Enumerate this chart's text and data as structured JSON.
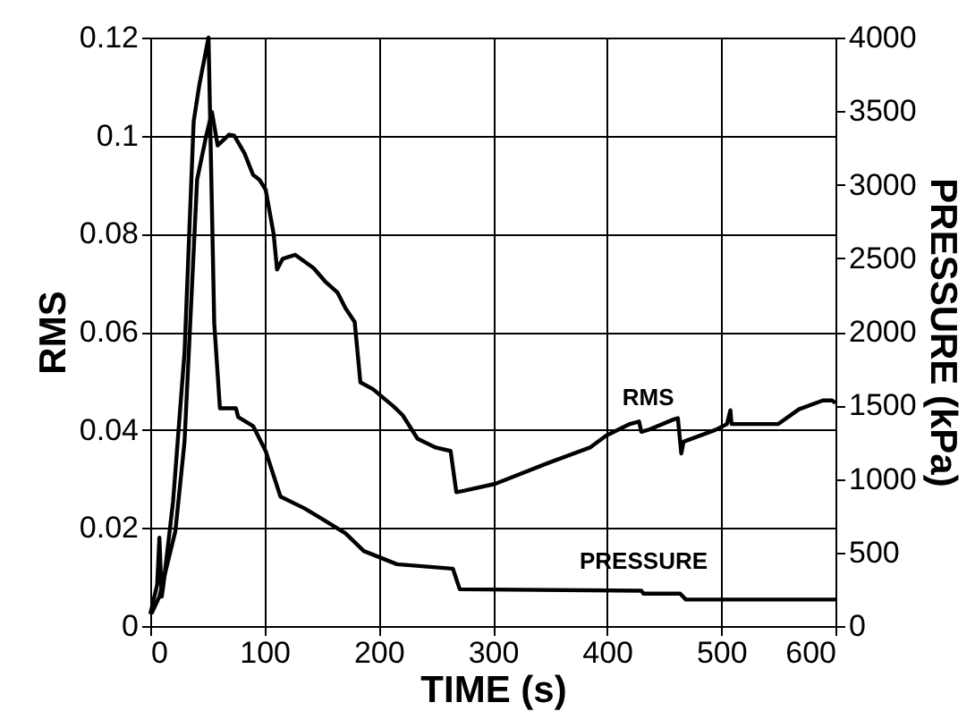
{
  "chart_data": {
    "type": "line",
    "xlabel": "TIME (s)",
    "ylabel": "RMS",
    "y2label": "PRESSURE (kPa)",
    "xlim": [
      0,
      600
    ],
    "xticks": [
      0,
      100,
      200,
      300,
      400,
      500,
      600
    ],
    "ylim": [
      0,
      0.12
    ],
    "yticks": [
      0,
      0.02,
      0.04,
      0.06,
      0.08,
      0.1,
      0.12
    ],
    "y2lim": [
      0,
      4000
    ],
    "y2ticks": [
      0,
      500,
      1000,
      1500,
      2000,
      2500,
      3000,
      3500,
      4000
    ],
    "grid": true,
    "marker": "none",
    "series": [
      {
        "name": "RMS",
        "color": "#000000",
        "x": [
          1,
          8,
          22,
          30,
          41,
          49,
          54,
          59,
          69,
          73.5,
          82.5,
          90,
          95.6,
          101,
          108,
          111,
          116,
          127,
          143,
          153,
          164,
          171,
          179,
          184,
          195,
          213,
          221,
          234,
          250,
          263,
          268,
          275,
          302,
          349,
          385,
          399,
          420,
          428,
          430,
          436,
          459,
          462,
          465,
          467,
          495,
          505,
          508,
          509,
          550,
          568,
          589,
          597,
          600
        ],
        "values": [
          0.0025,
          0.006,
          0.0194,
          0.0376,
          0.091,
          0.1,
          0.1048,
          0.098,
          0.1002,
          0.1,
          0.0964,
          0.092,
          0.091,
          0.089,
          0.08,
          0.0727,
          0.0749,
          0.0757,
          0.073,
          0.0703,
          0.068,
          0.0648,
          0.062,
          0.0497,
          0.0483,
          0.0448,
          0.043,
          0.0382,
          0.0364,
          0.0357,
          0.0273,
          0.0276,
          0.029,
          0.0333,
          0.0364,
          0.0388,
          0.0412,
          0.0417,
          0.0396,
          0.04,
          0.0422,
          0.0424,
          0.0352,
          0.0376,
          0.04,
          0.0412,
          0.044,
          0.0412,
          0.0412,
          0.0442,
          0.046,
          0.046,
          0.0455
        ]
      },
      {
        "name": "PRESSURE",
        "color": "#000000",
        "axis": "y2",
        "x": [
          0,
          6,
          8,
          10,
          11.5,
          20,
          30,
          38,
          43,
          51,
          56,
          61,
          75,
          77,
          90,
          101,
          114,
          135,
          150,
          171,
          187,
          216,
          265,
          271,
          430,
          432,
          464,
          469,
          600
        ],
        "values": [
          80,
          280,
          600,
          200,
          280,
          850,
          1860,
          3430,
          3680,
          4000,
          2060,
          1480,
          1480,
          1420,
          1360,
          1190,
          880,
          800,
          730,
          630,
          510,
          420,
          390,
          250,
          240,
          220,
          220,
          180,
          180
        ]
      }
    ]
  }
}
